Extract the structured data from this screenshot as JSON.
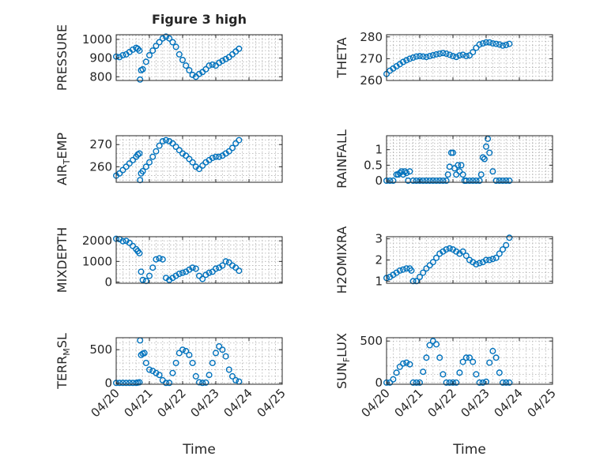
{
  "figure": {
    "title": "Figure 3 high",
    "xlabel": "Time"
  },
  "colors": {
    "marker": "#0072BD",
    "axis": "#262626",
    "grid": "#b0b0b0"
  },
  "chart_data": [
    {
      "type": "scatter",
      "ylabel": "PRESSURE",
      "xlim": [
        "04/20",
        "04/25"
      ],
      "xticks": [
        "04/20",
        "04/21",
        "04/22",
        "04/23",
        "04/24",
        "04/25"
      ],
      "ylim": [
        780,
        1025
      ],
      "yticks": [
        800,
        900,
        1000
      ],
      "grid": true,
      "x": [
        0.0,
        0.1,
        0.2,
        0.3,
        0.4,
        0.5,
        0.6,
        0.65,
        0.7,
        0.72,
        0.75,
        0.8,
        0.9,
        1.0,
        1.1,
        1.2,
        1.3,
        1.4,
        1.5,
        1.6,
        1.7,
        1.8,
        1.9,
        2.0,
        2.1,
        2.2,
        2.3,
        2.4,
        2.5,
        2.6,
        2.7,
        2.8,
        2.9,
        3.0,
        3.1,
        3.2,
        3.3,
        3.4,
        3.5,
        3.6,
        3.7
      ],
      "y": [
        908,
        905,
        915,
        920,
        932,
        945,
        955,
        950,
        940,
        785,
        835,
        840,
        880,
        915,
        940,
        965,
        985,
        1005,
        1015,
        1005,
        985,
        960,
        920,
        890,
        860,
        835,
        810,
        800,
        815,
        825,
        840,
        860,
        865,
        860,
        875,
        885,
        895,
        905,
        920,
        935,
        950
      ]
    },
    {
      "type": "scatter",
      "ylabel": "THETA",
      "xlim": [
        "04/20",
        "04/25"
      ],
      "xticks": [
        "04/20",
        "04/21",
        "04/22",
        "04/23",
        "04/24",
        "04/25"
      ],
      "ylim": [
        260,
        281
      ],
      "yticks": [
        260,
        270,
        280
      ],
      "grid": true,
      "x": [
        0.0,
        0.1,
        0.2,
        0.3,
        0.4,
        0.5,
        0.6,
        0.7,
        0.8,
        0.9,
        1.0,
        1.1,
        1.2,
        1.3,
        1.4,
        1.5,
        1.6,
        1.7,
        1.8,
        1.9,
        2.0,
        2.1,
        2.2,
        2.3,
        2.4,
        2.5,
        2.6,
        2.7,
        2.8,
        2.9,
        3.0,
        3.1,
        3.2,
        3.3,
        3.4,
        3.5,
        3.6,
        3.7
      ],
      "y": [
        263,
        264.5,
        265.5,
        266.5,
        267.5,
        268.5,
        269.3,
        270,
        270.5,
        271,
        271.2,
        271,
        270.8,
        271.2,
        271.6,
        272,
        272.3,
        272.6,
        272.3,
        271.8,
        271.2,
        270.8,
        271.5,
        271.8,
        271.2,
        271.5,
        273,
        275,
        276.5,
        277,
        277.5,
        277.5,
        277,
        276.8,
        276.5,
        276,
        276.3,
        276.8
      ]
    },
    {
      "type": "scatter",
      "ylabel": "AIR_TEMP",
      "xlim": [
        "04/20",
        "04/25"
      ],
      "xticks": [
        "04/20",
        "04/21",
        "04/22",
        "04/23",
        "04/24",
        "04/25"
      ],
      "ylim": [
        253,
        274
      ],
      "yticks": [
        260,
        270
      ],
      "grid": true,
      "x": [
        0.0,
        0.1,
        0.2,
        0.3,
        0.4,
        0.5,
        0.6,
        0.65,
        0.7,
        0.72,
        0.75,
        0.8,
        0.9,
        1.0,
        1.1,
        1.2,
        1.3,
        1.4,
        1.5,
        1.6,
        1.7,
        1.8,
        1.9,
        2.0,
        2.1,
        2.2,
        2.3,
        2.4,
        2.5,
        2.6,
        2.7,
        2.8,
        2.9,
        3.0,
        3.1,
        3.2,
        3.3,
        3.4,
        3.5,
        3.6,
        3.7
      ],
      "y": [
        256,
        257,
        258.5,
        260,
        261.5,
        263,
        264.5,
        265.5,
        266,
        254,
        257,
        258,
        260,
        262,
        264.5,
        267,
        269.5,
        271.5,
        272,
        271.5,
        270.5,
        269,
        267.5,
        266,
        265,
        263.5,
        262,
        260,
        259,
        260.5,
        262,
        263,
        264,
        264.5,
        264.5,
        265,
        266,
        267,
        268.5,
        270.5,
        272
      ]
    },
    {
      "type": "scatter",
      "ylabel": "RAINFALL",
      "xlim": [
        "04/20",
        "04/25"
      ],
      "xticks": [
        "04/20",
        "04/21",
        "04/22",
        "04/23",
        "04/24",
        "04/25"
      ],
      "ylim": [
        -0.05,
        1.45
      ],
      "yticks": [
        0,
        0.5,
        1
      ],
      "grid": true,
      "x": [
        0.0,
        0.1,
        0.2,
        0.3,
        0.35,
        0.4,
        0.45,
        0.5,
        0.55,
        0.6,
        0.65,
        0.7,
        0.8,
        0.9,
        1.0,
        1.1,
        1.2,
        1.3,
        1.4,
        1.5,
        1.6,
        1.7,
        1.8,
        1.85,
        1.9,
        1.95,
        2.0,
        2.05,
        2.1,
        2.15,
        2.2,
        2.25,
        2.3,
        2.35,
        2.4,
        2.5,
        2.6,
        2.7,
        2.8,
        2.85,
        2.9,
        2.95,
        3.0,
        3.05,
        3.1,
        3.2,
        3.3,
        3.4,
        3.5,
        3.6,
        3.7
      ],
      "y": [
        0,
        0,
        0,
        0.2,
        0.2,
        0.25,
        0.3,
        0.2,
        0.3,
        0.25,
        0,
        0.3,
        0,
        0,
        0,
        0,
        0,
        0,
        0,
        0,
        0,
        0,
        0,
        0.2,
        0.45,
        0.9,
        0.9,
        0.4,
        0.2,
        0.5,
        0.3,
        0.5,
        0.2,
        0,
        0,
        0,
        0,
        0,
        0,
        0.2,
        0.75,
        0.7,
        1.1,
        1.35,
        0.9,
        0.3,
        0,
        0,
        0,
        0,
        0
      ]
    },
    {
      "type": "scatter",
      "ylabel": "MIXDEPTH",
      "xlim": [
        "04/20",
        "04/25"
      ],
      "xticks": [
        "04/20",
        "04/21",
        "04/22",
        "04/23",
        "04/24",
        "04/25"
      ],
      "ylim": [
        -60,
        2200
      ],
      "yticks": [
        0,
        1000,
        2000
      ],
      "grid": true,
      "x": [
        0.0,
        0.1,
        0.2,
        0.3,
        0.4,
        0.5,
        0.6,
        0.65,
        0.7,
        0.75,
        0.8,
        0.9,
        1.0,
        1.1,
        1.2,
        1.3,
        1.4,
        1.5,
        1.6,
        1.7,
        1.8,
        1.9,
        2.0,
        2.1,
        2.2,
        2.3,
        2.4,
        2.5,
        2.6,
        2.7,
        2.8,
        2.9,
        3.0,
        3.1,
        3.2,
        3.3,
        3.4,
        3.5,
        3.6,
        3.7
      ],
      "y": [
        2100,
        2080,
        1980,
        2000,
        1900,
        1750,
        1600,
        1500,
        1400,
        500,
        100,
        50,
        300,
        700,
        1100,
        1150,
        1100,
        200,
        100,
        200,
        300,
        400,
        450,
        500,
        600,
        700,
        650,
        300,
        150,
        350,
        450,
        500,
        650,
        700,
        800,
        1000,
        950,
        800,
        700,
        550
      ]
    },
    {
      "type": "scatter",
      "ylabel": "H2OMIXRA",
      "xlim": [
        "04/20",
        "04/25"
      ],
      "xticks": [
        "04/20",
        "04/21",
        "04/22",
        "04/23",
        "04/24",
        "04/25"
      ],
      "ylim": [
        0.9,
        3.1
      ],
      "yticks": [
        1,
        2,
        3
      ],
      "grid": true,
      "x": [
        0.0,
        0.1,
        0.2,
        0.3,
        0.4,
        0.5,
        0.6,
        0.7,
        0.75,
        0.8,
        0.9,
        1.0,
        1.1,
        1.2,
        1.3,
        1.4,
        1.5,
        1.6,
        1.7,
        1.8,
        1.9,
        2.0,
        2.1,
        2.2,
        2.3,
        2.4,
        2.5,
        2.6,
        2.7,
        2.8,
        2.9,
        3.0,
        3.1,
        3.2,
        3.3,
        3.4,
        3.5,
        3.6,
        3.7
      ],
      "y": [
        1.15,
        1.2,
        1.3,
        1.4,
        1.5,
        1.55,
        1.6,
        1.6,
        1.5,
        1.0,
        1.0,
        1.2,
        1.4,
        1.6,
        1.75,
        1.9,
        2.1,
        2.3,
        2.4,
        2.5,
        2.55,
        2.5,
        2.4,
        2.3,
        2.4,
        2.2,
        2.0,
        1.9,
        1.8,
        1.85,
        1.9,
        2.0,
        2.0,
        2.05,
        2.1,
        2.3,
        2.5,
        2.7,
        3.05
      ]
    },
    {
      "type": "scatter",
      "ylabel": "TERR_MSL",
      "xlim": [
        "04/20",
        "04/25"
      ],
      "xticks": [
        "04/20",
        "04/21",
        "04/22",
        "04/23",
        "04/24",
        "04/25"
      ],
      "ylim": [
        -20,
        680
      ],
      "yticks": [
        0,
        500
      ],
      "grid": true,
      "x": [
        0.0,
        0.1,
        0.2,
        0.3,
        0.4,
        0.5,
        0.6,
        0.65,
        0.7,
        0.72,
        0.75,
        0.8,
        0.85,
        0.9,
        1.0,
        1.1,
        1.2,
        1.3,
        1.4,
        1.5,
        1.6,
        1.7,
        1.8,
        1.9,
        2.0,
        2.1,
        2.2,
        2.3,
        2.4,
        2.5,
        2.6,
        2.7,
        2.8,
        2.9,
        3.0,
        3.1,
        3.2,
        3.3,
        3.4,
        3.5,
        3.6,
        3.7
      ],
      "y": [
        0,
        0,
        0,
        0,
        0,
        0,
        0,
        5,
        10,
        640,
        420,
        440,
        450,
        300,
        200,
        180,
        150,
        120,
        40,
        0,
        0,
        150,
        300,
        450,
        500,
        480,
        420,
        300,
        100,
        10,
        0,
        5,
        120,
        300,
        450,
        550,
        500,
        400,
        200,
        100,
        40,
        20
      ]
    },
    {
      "type": "scatter",
      "ylabel": "SUN_FLUX",
      "xlim": [
        "04/20",
        "04/25"
      ],
      "xticks": [
        "04/20",
        "04/21",
        "04/22",
        "04/23",
        "04/24",
        "04/25"
      ],
      "ylim": [
        -20,
        540
      ],
      "yticks": [
        0,
        500
      ],
      "grid": true,
      "x": [
        0.0,
        0.1,
        0.2,
        0.3,
        0.4,
        0.5,
        0.6,
        0.7,
        0.8,
        0.9,
        1.0,
        1.1,
        1.2,
        1.3,
        1.4,
        1.5,
        1.6,
        1.7,
        1.8,
        1.9,
        2.0,
        2.1,
        2.2,
        2.3,
        2.4,
        2.5,
        2.6,
        2.7,
        2.8,
        2.9,
        3.0,
        3.1,
        3.2,
        3.3,
        3.4,
        3.5,
        3.6,
        3.7
      ],
      "y": [
        0,
        0,
        40,
        120,
        190,
        230,
        240,
        220,
        0,
        0,
        0,
        130,
        300,
        450,
        500,
        460,
        300,
        100,
        0,
        0,
        0,
        0,
        120,
        250,
        300,
        300,
        250,
        100,
        0,
        0,
        10,
        240,
        380,
        300,
        120,
        0,
        0,
        0
      ]
    }
  ]
}
